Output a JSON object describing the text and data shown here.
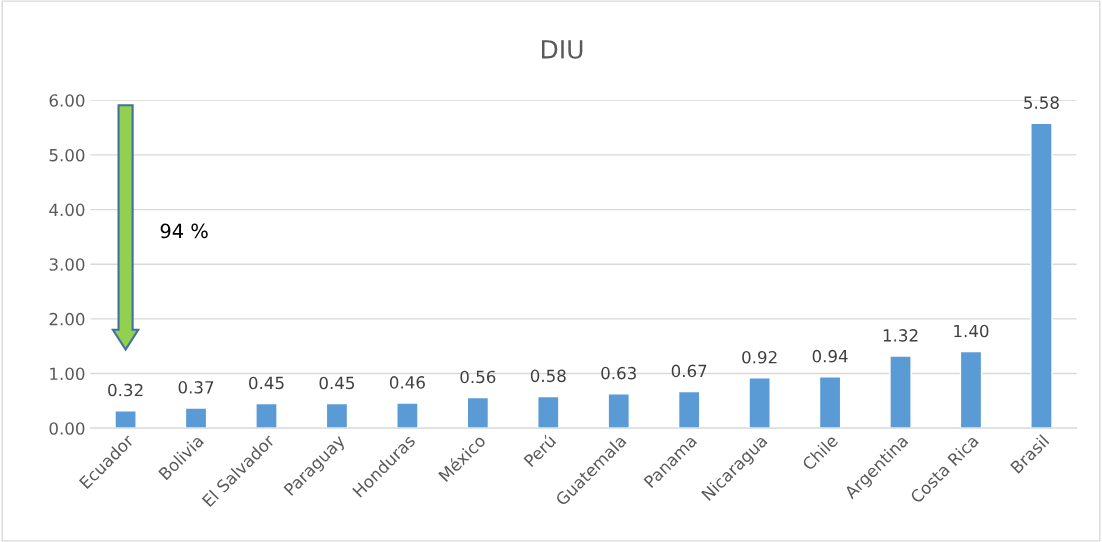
{
  "chart_data": {
    "type": "bar",
    "title": "DIU",
    "categories": [
      "Ecuador",
      "Bolivia",
      "El Salvador",
      "Paraguay",
      "Honduras",
      "México",
      "Perú",
      "Guatemala",
      "Panama",
      "Nicaragua",
      "Chile",
      "Argentina",
      "Costa Rica",
      "Brasil"
    ],
    "values": [
      0.32,
      0.37,
      0.45,
      0.45,
      0.46,
      0.56,
      0.58,
      0.63,
      0.67,
      0.92,
      0.94,
      1.32,
      1.4,
      5.58
    ],
    "value_labels": [
      "0.32",
      "0.37",
      "0.45",
      "0.45",
      "0.46",
      "0.56",
      "0.58",
      "0.63",
      "0.67",
      "0.92",
      "0.94",
      "1.32",
      "1.40",
      "5.58"
    ],
    "color": "#5b9bd5",
    "ylim": [
      0,
      6
    ],
    "yticks": [
      {
        "value": 0,
        "label": "0.00"
      },
      {
        "value": 1,
        "label": "1.00"
      },
      {
        "value": 2,
        "label": "2.00"
      },
      {
        "value": 3,
        "label": "3.00"
      },
      {
        "value": 4,
        "label": "4.00"
      },
      {
        "value": 5,
        "label": "5.00"
      },
      {
        "value": 6,
        "label": "6.00"
      }
    ],
    "grid": "y",
    "annotations": [
      "94 %"
    ]
  }
}
